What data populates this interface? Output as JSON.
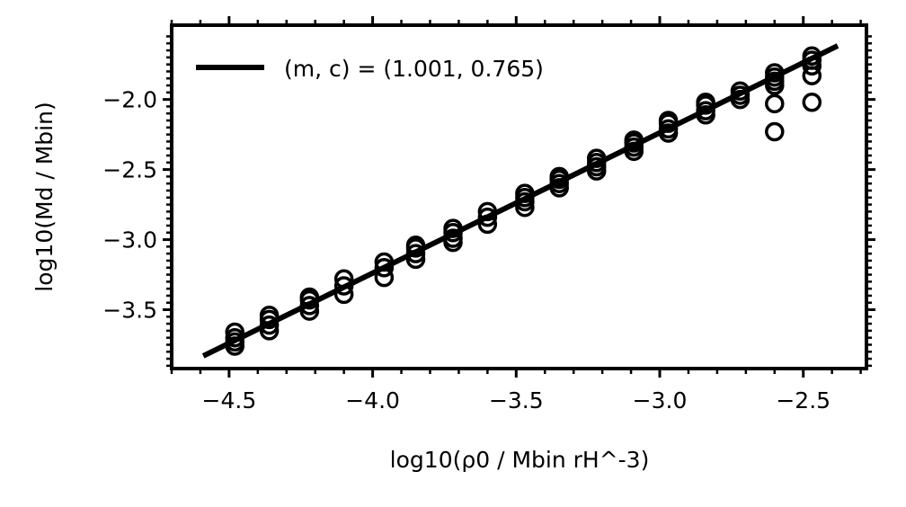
{
  "chart_data": {
    "type": "scatter",
    "xlabel": "log10(ρ0 / Mbin rH^-3)",
    "ylabel": "log10(Md / Mbin)",
    "xlim": [
      -4.7,
      -2.28
    ],
    "ylim": [
      -3.92,
      -1.47
    ],
    "xticks": [
      -4.5,
      -4.0,
      -3.5,
      -3.0,
      -2.5
    ],
    "xtick_labels": [
      "−4.5",
      "−4.0",
      "−3.5",
      "−3.0",
      "−2.5"
    ],
    "yticks": [
      -3.5,
      -3.0,
      -2.5,
      -2.0
    ],
    "ytick_labels": [
      "−3.5",
      "−3.0",
      "−2.5",
      "−2.0"
    ],
    "grid": false,
    "legend": {
      "position": "top-left",
      "label": "(m, c) = (1.001, 0.765)"
    },
    "fit_line": {
      "slope": 1.001,
      "intercept": 0.765,
      "x_range": [
        -4.59,
        -2.38
      ],
      "color": "#000000"
    },
    "points": [
      {
        "x": -4.48,
        "y": -3.76
      },
      {
        "x": -4.48,
        "y": -3.73
      },
      {
        "x": -4.48,
        "y": -3.7
      },
      {
        "x": -4.48,
        "y": -3.66
      },
      {
        "x": -4.36,
        "y": -3.65
      },
      {
        "x": -4.36,
        "y": -3.61
      },
      {
        "x": -4.36,
        "y": -3.57
      },
      {
        "x": -4.36,
        "y": -3.54
      },
      {
        "x": -4.22,
        "y": -3.51
      },
      {
        "x": -4.22,
        "y": -3.47
      },
      {
        "x": -4.22,
        "y": -3.43
      },
      {
        "x": -4.22,
        "y": -3.41
      },
      {
        "x": -4.1,
        "y": -3.39
      },
      {
        "x": -4.1,
        "y": -3.33
      },
      {
        "x": -4.1,
        "y": -3.28
      },
      {
        "x": -3.96,
        "y": -3.27
      },
      {
        "x": -3.96,
        "y": -3.2
      },
      {
        "x": -3.96,
        "y": -3.16
      },
      {
        "x": -3.85,
        "y": -3.14
      },
      {
        "x": -3.85,
        "y": -3.1
      },
      {
        "x": -3.85,
        "y": -3.06
      },
      {
        "x": -3.85,
        "y": -3.04
      },
      {
        "x": -3.72,
        "y": -3.02
      },
      {
        "x": -3.72,
        "y": -2.99
      },
      {
        "x": -3.72,
        "y": -2.95
      },
      {
        "x": -3.72,
        "y": -2.92
      },
      {
        "x": -3.6,
        "y": -2.89
      },
      {
        "x": -3.6,
        "y": -2.84
      },
      {
        "x": -3.6,
        "y": -2.8
      },
      {
        "x": -3.47,
        "y": -2.77
      },
      {
        "x": -3.47,
        "y": -2.73
      },
      {
        "x": -3.47,
        "y": -2.7
      },
      {
        "x": -3.47,
        "y": -2.67
      },
      {
        "x": -3.35,
        "y": -2.63
      },
      {
        "x": -3.35,
        "y": -2.6
      },
      {
        "x": -3.35,
        "y": -2.57
      },
      {
        "x": -3.35,
        "y": -2.55
      },
      {
        "x": -3.22,
        "y": -2.51
      },
      {
        "x": -3.22,
        "y": -2.48
      },
      {
        "x": -3.22,
        "y": -2.45
      },
      {
        "x": -3.22,
        "y": -2.42
      },
      {
        "x": -3.09,
        "y": -2.37
      },
      {
        "x": -3.09,
        "y": -2.34
      },
      {
        "x": -3.09,
        "y": -2.31
      },
      {
        "x": -3.09,
        "y": -2.29
      },
      {
        "x": -2.97,
        "y": -2.24
      },
      {
        "x": -2.97,
        "y": -2.21
      },
      {
        "x": -2.97,
        "y": -2.17
      },
      {
        "x": -2.97,
        "y": -2.15
      },
      {
        "x": -2.84,
        "y": -2.11
      },
      {
        "x": -2.84,
        "y": -2.08
      },
      {
        "x": -2.84,
        "y": -2.04
      },
      {
        "x": -2.84,
        "y": -2.02
      },
      {
        "x": -2.72,
        "y": -2.0
      },
      {
        "x": -2.72,
        "y": -1.97
      },
      {
        "x": -2.72,
        "y": -1.94
      },
      {
        "x": -2.6,
        "y": -2.23
      },
      {
        "x": -2.6,
        "y": -2.03
      },
      {
        "x": -2.6,
        "y": -1.9
      },
      {
        "x": -2.6,
        "y": -1.87
      },
      {
        "x": -2.6,
        "y": -1.84
      },
      {
        "x": -2.6,
        "y": -1.81
      },
      {
        "x": -2.47,
        "y": -2.02
      },
      {
        "x": -2.47,
        "y": -1.83
      },
      {
        "x": -2.47,
        "y": -1.76
      },
      {
        "x": -2.47,
        "y": -1.72
      },
      {
        "x": -2.47,
        "y": -1.69
      }
    ]
  }
}
